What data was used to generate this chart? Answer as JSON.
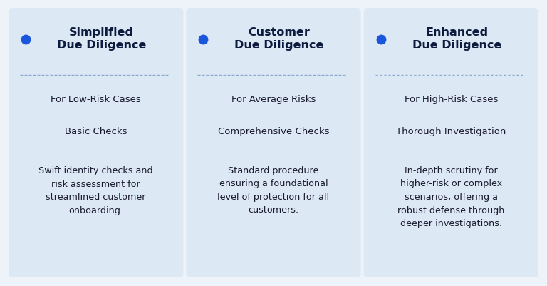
{
  "background_color": "#eef2f9",
  "card_color": "#dde8f5",
  "dot_color": "#1a56db",
  "title_color": "#0d1b3e",
  "text_color": "#1a1a2e",
  "divider_color": "#8aaad0",
  "cards": [
    {
      "title": "Simplified\nDue Diligence",
      "item1": "For Low-Risk Cases",
      "item2": "Basic Checks",
      "description": "Swift identity checks and\nrisk assessment for\nstreamlined customer\nonboarding."
    },
    {
      "title": "Customer\nDue Diligence",
      "item1": "For Average Risks",
      "item2": "Comprehensive Checks",
      "description": "Standard procedure\nensuring a foundational\nlevel of protection for all\ncustomers."
    },
    {
      "title": "Enhanced\nDue Diligence",
      "item1": "For High-Risk Cases",
      "item2": "Thorough Investigation",
      "description": "In-depth scrutiny for\nhigher-risk or complex\nscenarios, offering a\nrobust defense through\ndeeper investigations."
    }
  ]
}
